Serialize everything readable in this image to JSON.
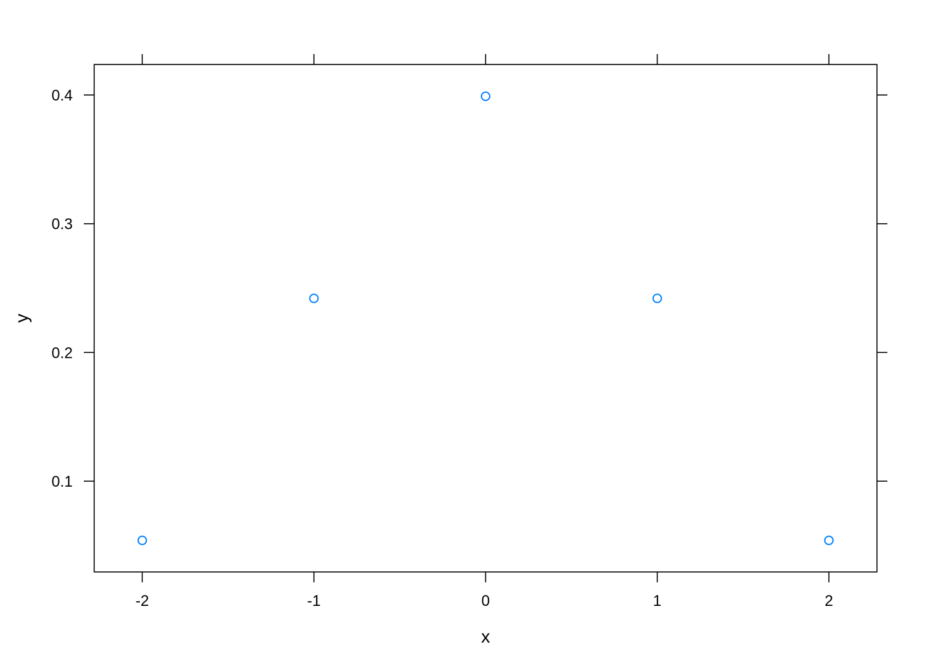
{
  "chart_data": {
    "type": "scatter",
    "title": "",
    "xlabel": "x",
    "ylabel": "y",
    "x": [
      -2,
      -1,
      0,
      1,
      2
    ],
    "y": [
      0.054,
      0.242,
      0.399,
      0.242,
      0.054
    ],
    "xlim": [
      -2.28,
      2.28
    ],
    "ylim": [
      0.0295,
      0.4237
    ],
    "xticks": [
      -2,
      -1,
      0,
      1,
      2
    ],
    "xtick_labels": [
      "-2",
      "-1",
      "0",
      "1",
      "2"
    ],
    "yticks": [
      0.1,
      0.2,
      0.3,
      0.4
    ],
    "ytick_labels": [
      "0.1",
      "0.2",
      "0.3",
      "0.4"
    ],
    "grid": false,
    "marker": "open-circle",
    "point_color": "#0080ff"
  }
}
